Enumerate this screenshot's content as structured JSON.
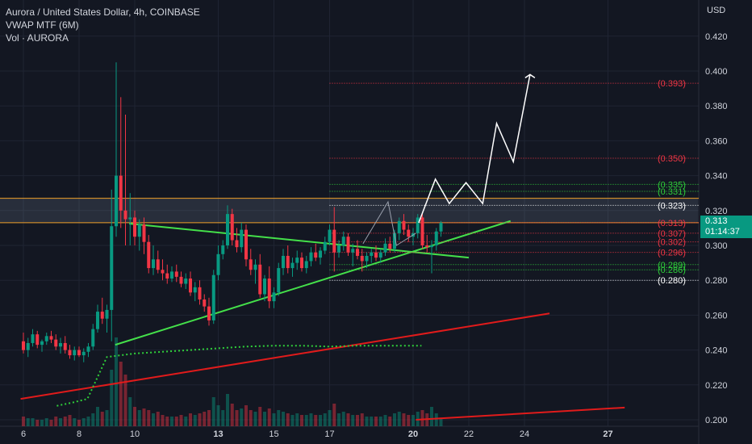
{
  "header": {
    "title": "Aurora / United States Dollar, 4h, COINBASE",
    "indicator_1": "VWAP MTF (6M)",
    "indicator_2": "Vol · AURORA"
  },
  "axis": {
    "currency": "USD"
  },
  "last_price": {
    "value": "0.313",
    "countdown": "01:14:37"
  },
  "colors": {
    "background": "#131722",
    "bull": "#089981",
    "bear": "#f23645",
    "trendline": "#44e04a",
    "longline": "#e01b1b",
    "vwap": "#2fcf3a",
    "orange": "#f0a02a",
    "projection": "#ffffff"
  },
  "chart_data": {
    "type": "candlestick",
    "title": "Aurora / United States Dollar, 4h, COINBASE",
    "ylim": [
      0.2,
      0.44
    ],
    "y_ticks": [
      "0.200",
      "0.220",
      "0.240",
      "0.260",
      "0.280",
      "0.300",
      "0.320",
      "0.340",
      "0.360",
      "0.380",
      "0.400",
      "0.420"
    ],
    "x_ticks": [
      "6",
      "8",
      "10",
      "13",
      "15",
      "17",
      "20",
      "22",
      "24",
      "27"
    ],
    "x_tick_days": [
      6,
      8,
      10,
      13,
      15,
      17,
      20,
      22,
      24,
      27
    ],
    "candle_days_start": 6,
    "candle_days_step": 0.166667,
    "candles": [
      [
        0.245,
        0.25,
        0.238,
        0.24
      ],
      [
        0.24,
        0.247,
        0.236,
        0.244
      ],
      [
        0.244,
        0.252,
        0.242,
        0.249
      ],
      [
        0.249,
        0.251,
        0.241,
        0.243
      ],
      [
        0.243,
        0.246,
        0.239,
        0.245
      ],
      [
        0.245,
        0.25,
        0.243,
        0.248
      ],
      [
        0.248,
        0.251,
        0.244,
        0.246
      ],
      [
        0.246,
        0.249,
        0.24,
        0.242
      ],
      [
        0.242,
        0.247,
        0.238,
        0.244
      ],
      [
        0.244,
        0.248,
        0.238,
        0.24
      ],
      [
        0.24,
        0.243,
        0.235,
        0.237
      ],
      [
        0.237,
        0.242,
        0.234,
        0.24
      ],
      [
        0.24,
        0.242,
        0.236,
        0.237
      ],
      [
        0.237,
        0.241,
        0.233,
        0.239
      ],
      [
        0.239,
        0.244,
        0.236,
        0.242
      ],
      [
        0.242,
        0.255,
        0.24,
        0.252
      ],
      [
        0.252,
        0.266,
        0.25,
        0.262
      ],
      [
        0.262,
        0.27,
        0.255,
        0.258
      ],
      [
        0.258,
        0.266,
        0.25,
        0.263
      ],
      [
        0.263,
        0.332,
        0.245,
        0.311
      ],
      [
        0.311,
        0.405,
        0.305,
        0.34
      ],
      [
        0.34,
        0.385,
        0.31,
        0.32
      ],
      [
        0.32,
        0.375,
        0.3,
        0.315
      ],
      [
        0.315,
        0.33,
        0.3,
        0.316
      ],
      [
        0.316,
        0.32,
        0.3,
        0.305
      ],
      [
        0.305,
        0.315,
        0.297,
        0.312
      ],
      [
        0.312,
        0.316,
        0.295,
        0.302
      ],
      [
        0.302,
        0.306,
        0.284,
        0.287
      ],
      [
        0.287,
        0.3,
        0.283,
        0.292
      ],
      [
        0.292,
        0.297,
        0.284,
        0.286
      ],
      [
        0.286,
        0.292,
        0.28,
        0.284
      ],
      [
        0.284,
        0.289,
        0.278,
        0.281
      ],
      [
        0.281,
        0.288,
        0.279,
        0.285
      ],
      [
        0.285,
        0.289,
        0.279,
        0.282
      ],
      [
        0.282,
        0.285,
        0.276,
        0.278
      ],
      [
        0.278,
        0.284,
        0.275,
        0.281
      ],
      [
        0.281,
        0.285,
        0.271,
        0.273
      ],
      [
        0.273,
        0.279,
        0.268,
        0.276
      ],
      [
        0.276,
        0.28,
        0.266,
        0.269
      ],
      [
        0.269,
        0.272,
        0.262,
        0.265
      ],
      [
        0.265,
        0.27,
        0.254,
        0.257
      ],
      [
        0.257,
        0.286,
        0.255,
        0.283
      ],
      [
        0.283,
        0.3,
        0.28,
        0.295
      ],
      [
        0.295,
        0.303,
        0.292,
        0.3
      ],
      [
        0.3,
        0.323,
        0.298,
        0.318
      ],
      [
        0.318,
        0.321,
        0.3,
        0.303
      ],
      [
        0.303,
        0.31,
        0.296,
        0.299
      ],
      [
        0.299,
        0.313,
        0.296,
        0.309
      ],
      [
        0.309,
        0.312,
        0.288,
        0.292
      ],
      [
        0.292,
        0.298,
        0.283,
        0.286
      ],
      [
        0.286,
        0.292,
        0.278,
        0.289
      ],
      [
        0.289,
        0.295,
        0.27,
        0.272
      ],
      [
        0.272,
        0.283,
        0.268,
        0.281
      ],
      [
        0.281,
        0.288,
        0.264,
        0.268
      ],
      [
        0.268,
        0.276,
        0.264,
        0.273
      ],
      [
        0.273,
        0.29,
        0.271,
        0.287
      ],
      [
        0.287,
        0.298,
        0.283,
        0.294
      ],
      [
        0.294,
        0.3,
        0.284,
        0.287
      ],
      [
        0.287,
        0.293,
        0.282,
        0.29
      ],
      [
        0.29,
        0.297,
        0.286,
        0.293
      ],
      [
        0.293,
        0.296,
        0.285,
        0.287
      ],
      [
        0.287,
        0.294,
        0.284,
        0.291
      ],
      [
        0.291,
        0.299,
        0.288,
        0.296
      ],
      [
        0.296,
        0.301,
        0.291,
        0.293
      ],
      [
        0.293,
        0.299,
        0.289,
        0.297
      ],
      [
        0.297,
        0.305,
        0.295,
        0.302
      ],
      [
        0.302,
        0.312,
        0.3,
        0.309
      ],
      [
        0.309,
        0.322,
        0.285,
        0.296
      ],
      [
        0.296,
        0.303,
        0.293,
        0.3
      ],
      [
        0.3,
        0.308,
        0.297,
        0.305
      ],
      [
        0.305,
        0.307,
        0.294,
        0.296
      ],
      [
        0.296,
        0.301,
        0.288,
        0.298
      ],
      [
        0.298,
        0.303,
        0.292,
        0.294
      ],
      [
        0.294,
        0.298,
        0.285,
        0.291
      ],
      [
        0.291,
        0.296,
        0.287,
        0.294
      ],
      [
        0.294,
        0.298,
        0.29,
        0.296
      ],
      [
        0.296,
        0.3,
        0.291,
        0.293
      ],
      [
        0.293,
        0.298,
        0.29,
        0.296
      ],
      [
        0.296,
        0.304,
        0.294,
        0.301
      ],
      [
        0.301,
        0.305,
        0.296,
        0.298
      ],
      [
        0.298,
        0.309,
        0.296,
        0.307
      ],
      [
        0.307,
        0.316,
        0.303,
        0.314
      ],
      [
        0.314,
        0.318,
        0.306,
        0.309
      ],
      [
        0.309,
        0.312,
        0.302,
        0.305
      ],
      [
        0.305,
        0.31,
        0.3,
        0.307
      ],
      [
        0.307,
        0.318,
        0.304,
        0.316
      ],
      [
        0.316,
        0.318,
        0.298,
        0.3
      ],
      [
        0.3,
        0.306,
        0.296,
        0.299
      ],
      [
        0.299,
        0.303,
        0.284,
        0.3
      ],
      [
        0.3,
        0.31,
        0.297,
        0.308
      ],
      [
        0.308,
        0.314,
        0.305,
        0.313
      ]
    ],
    "volumes": [
      0.6,
      0.5,
      0.5,
      0.4,
      0.4,
      0.5,
      0.4,
      0.6,
      0.5,
      0.6,
      0.7,
      0.5,
      0.4,
      0.5,
      0.6,
      0.8,
      1.2,
      0.9,
      1.0,
      3.5,
      5.5,
      4.0,
      3.2,
      1.8,
      1.2,
      1.0,
      1.1,
      1.0,
      0.8,
      0.9,
      0.7,
      0.6,
      0.6,
      0.6,
      0.7,
      0.6,
      0.8,
      0.7,
      0.8,
      0.9,
      1.0,
      1.8,
      1.3,
      1.0,
      2.0,
      1.4,
      1.0,
      1.1,
      1.3,
      1.0,
      0.9,
      1.2,
      0.9,
      1.1,
      0.8,
      1.0,
      0.9,
      0.8,
      0.7,
      0.8,
      0.7,
      0.7,
      0.8,
      0.7,
      0.7,
      0.8,
      1.0,
      1.4,
      0.8,
      0.9,
      0.8,
      0.7,
      0.7,
      0.8,
      0.6,
      0.6,
      0.6,
      0.6,
      0.7,
      0.6,
      0.8,
      0.9,
      0.8,
      0.7,
      0.7,
      0.9,
      1.0,
      0.8,
      1.2,
      0.8,
      0.5
    ],
    "horizontal_levels": [
      {
        "label": "(0.393)",
        "value": 0.393,
        "color": "#f23645",
        "style": "dotted"
      },
      {
        "label": "(0.350)",
        "value": 0.35,
        "color": "#f23645",
        "style": "dotted"
      },
      {
        "label": "(0.335)",
        "value": 0.335,
        "color": "#2fcf3a",
        "style": "dotted"
      },
      {
        "label": "(0.331)",
        "value": 0.331,
        "color": "#2fcf3a",
        "style": "dotted"
      },
      {
        "label": "(0.323)",
        "value": 0.323,
        "color": "#ffffff",
        "style": "dotted"
      },
      {
        "label": "(0.313)",
        "value": 0.313,
        "color": "#f23645",
        "style": "dotted"
      },
      {
        "label": "(0.307)",
        "value": 0.307,
        "color": "#f23645",
        "style": "dotted"
      },
      {
        "label": "(0.302)",
        "value": 0.302,
        "color": "#f23645",
        "style": "dotted"
      },
      {
        "label": "(0.296)",
        "value": 0.296,
        "color": "#f23645",
        "style": "dotted"
      },
      {
        "label": "(0.289)",
        "value": 0.289,
        "color": "#2fcf3a",
        "style": "dotted"
      },
      {
        "label": "(0.286)",
        "value": 0.286,
        "color": "#2fcf3a",
        "style": "dotted"
      },
      {
        "label": "(0.280)",
        "value": 0.28,
        "color": "#ffffff",
        "style": "dotted"
      }
    ],
    "levels_start_day": 17,
    "resistance_zone": [
      0.313,
      0.327
    ],
    "trendlines": [
      {
        "name": "descending",
        "color": "#44e04a",
        "from": [
          9.8,
          0.3125
        ],
        "to": [
          22.0,
          0.293
        ]
      },
      {
        "name": "ascending",
        "color": "#44e04a",
        "from": [
          9.3,
          0.243
        ],
        "to": [
          23.5,
          0.314
        ]
      },
      {
        "name": "long-up-1",
        "color": "#e01b1b",
        "from": [
          5.9,
          0.212
        ],
        "to": [
          24.9,
          0.261
        ]
      },
      {
        "name": "long-up-2",
        "color": "#e01b1b",
        "from": [
          20.1,
          0.2
        ],
        "to": [
          27.6,
          0.207
        ]
      }
    ],
    "vwap": [
      [
        7.2,
        0.208
      ],
      [
        7.8,
        0.21
      ],
      [
        8.3,
        0.212
      ],
      [
        9.0,
        0.236
      ],
      [
        10,
        0.238
      ],
      [
        11,
        0.239
      ],
      [
        12,
        0.24
      ],
      [
        13,
        0.241
      ],
      [
        14,
        0.242
      ],
      [
        15,
        0.2425
      ],
      [
        16,
        0.2425
      ],
      [
        17,
        0.242
      ],
      [
        18,
        0.2425
      ],
      [
        20,
        0.2425
      ],
      [
        20.3,
        0.2425
      ]
    ],
    "projection": [
      [
        20.2,
        0.313
      ],
      [
        20.8,
        0.338
      ],
      [
        21.3,
        0.324
      ],
      [
        21.9,
        0.336
      ],
      [
        22.5,
        0.324
      ],
      [
        23.0,
        0.37
      ],
      [
        23.6,
        0.348
      ],
      [
        24.2,
        0.398
      ]
    ],
    "small_path": [
      [
        18.2,
        0.301
      ],
      [
        19.1,
        0.325
      ],
      [
        19.4,
        0.3
      ],
      [
        20.1,
        0.307
      ]
    ]
  }
}
